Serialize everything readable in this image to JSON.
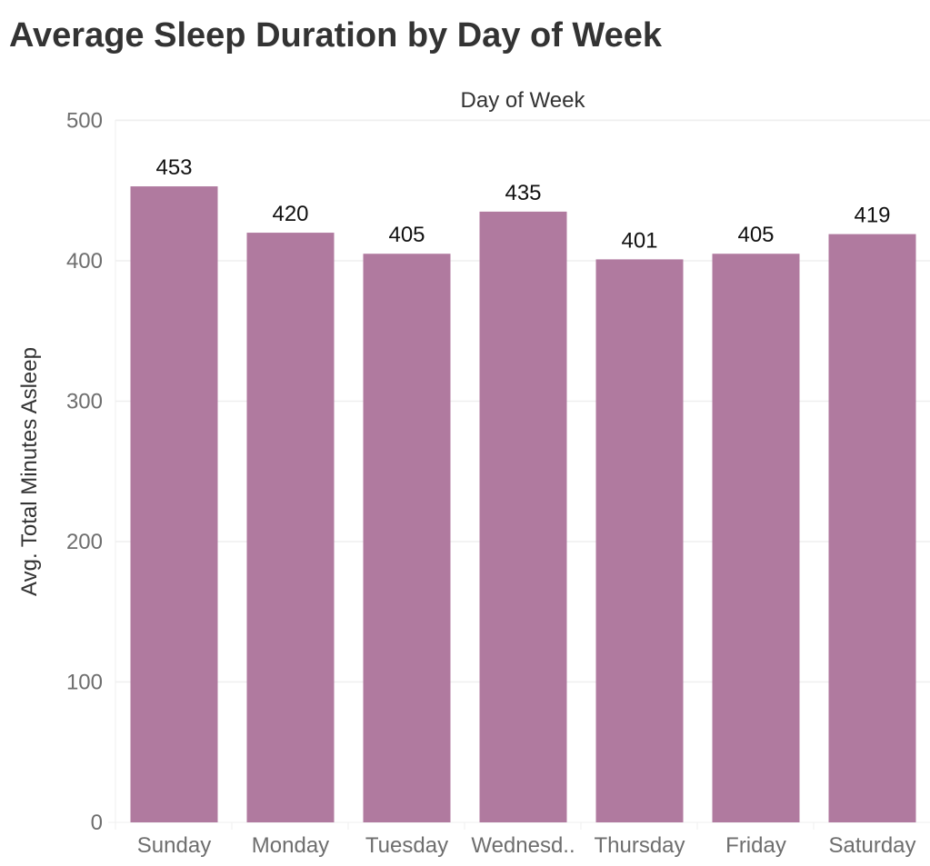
{
  "title": "Average Sleep Duration by Day of Week",
  "chart_data": {
    "type": "bar",
    "title": "Average Sleep Duration by Day of Week",
    "xlabel": "Day of Week",
    "xlabel_position": "top",
    "ylabel": "Avg. Total Minutes Asleep",
    "categories": [
      "Sunday",
      "Monday",
      "Tuesday",
      "Wednesd..",
      "Thursday",
      "Friday",
      "Saturday"
    ],
    "values": [
      453,
      420,
      405,
      435,
      401,
      405,
      419
    ],
    "value_labels": [
      "453",
      "420",
      "405",
      "435",
      "401",
      "405",
      "419"
    ],
    "ylim": [
      0,
      500
    ],
    "yticks": [
      0,
      100,
      200,
      300,
      400,
      500
    ],
    "grid": true,
    "bar_color": "#b07a9f",
    "text_color": "#333333",
    "tick_color": "#6e6e6e",
    "grid_color": "#efefef"
  }
}
